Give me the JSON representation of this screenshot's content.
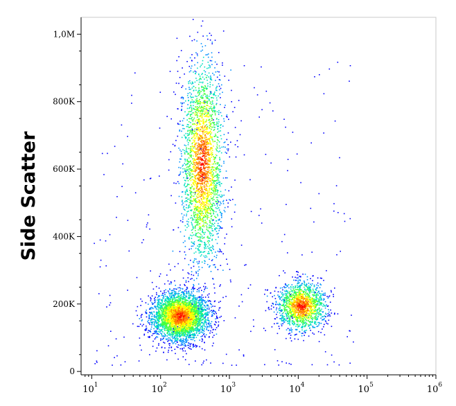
{
  "chart_data": {
    "type": "scatter",
    "subtype": "density-dot-plot",
    "title": "",
    "xlabel": "",
    "ylabel": "Side Scatter",
    "x_scale": "log",
    "xlim": [
      7,
      1000000
    ],
    "ylim": [
      -10000,
      1050000
    ],
    "grid": false,
    "y_ticks": [
      {
        "value": 0,
        "label": "0"
      },
      {
        "value": 200000,
        "label": "200K"
      },
      {
        "value": 400000,
        "label": "400K"
      },
      {
        "value": 600000,
        "label": "600K"
      },
      {
        "value": 800000,
        "label": "800K"
      },
      {
        "value": 1000000,
        "label": "1,0M"
      }
    ],
    "x_ticks": [
      {
        "value": 10,
        "base": "10",
        "exp": "1"
      },
      {
        "value": 100,
        "base": "10",
        "exp": "2"
      },
      {
        "value": 1000,
        "base": "10",
        "exp": "3"
      },
      {
        "value": 10000,
        "base": "10",
        "exp": "4"
      },
      {
        "value": 100000,
        "base": "10",
        "exp": "5"
      },
      {
        "value": 1000000,
        "base": "10",
        "exp": "6"
      }
    ],
    "color_scale": [
      "#0000ff",
      "#0090ff",
      "#00e0c0",
      "#40ff40",
      "#ffff00",
      "#ff8000",
      "#ff0000"
    ],
    "populations": [
      {
        "x_center": 190,
        "x_spread_decades": 0.2,
        "y_center": 165000,
        "y_spread": 35000,
        "events": 3600
      },
      {
        "x_center": 400,
        "x_spread_decades": 0.15,
        "y_center": 620000,
        "y_spread": 150000,
        "events": 2600
      },
      {
        "x_center": 11000,
        "x_spread_decades": 0.17,
        "y_center": 195000,
        "y_spread": 35000,
        "events": 1600
      }
    ]
  }
}
